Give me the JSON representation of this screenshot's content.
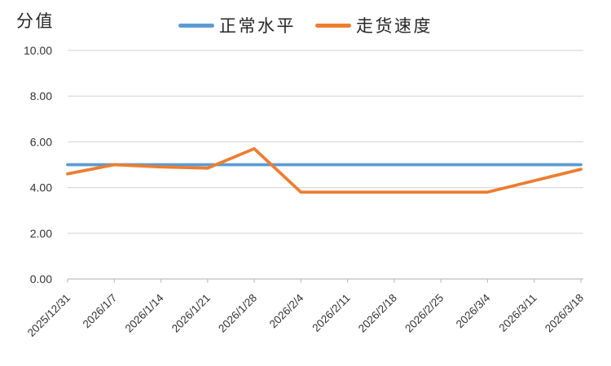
{
  "page": {
    "background": "#FFFFFF"
  },
  "chart_data": {
    "type": "line",
    "title": "",
    "ylabel": "分值",
    "xlabel": "",
    "x": [
      "2025/12/31",
      "2026/1/7",
      "2026/1/14",
      "2026/1/21",
      "2026/1/28",
      "2026/2/4",
      "2026/2/11",
      "2026/2/18",
      "2026/2/25",
      "2026/3/4",
      "2026/3/11",
      "2026/3/18"
    ],
    "series": [
      {
        "name": "正常水平",
        "color": "#5B9BD5",
        "values": [
          5.0,
          5.0,
          5.0,
          5.0,
          5.0,
          5.0,
          5.0,
          5.0,
          5.0,
          5.0,
          5.0,
          5.0
        ]
      },
      {
        "name": "走货速度",
        "color": "#ED7D31",
        "values": [
          4.6,
          5.0,
          4.9,
          4.85,
          5.7,
          3.8,
          3.8,
          3.8,
          3.8,
          3.8,
          4.3,
          4.8
        ]
      }
    ],
    "ylim": [
      0,
      10
    ],
    "ytick_step": 2,
    "ytick_labels": [
      "0.00",
      "2.00",
      "4.00",
      "6.00",
      "8.00",
      "10.00"
    ],
    "grid": true,
    "legend_position": "top",
    "colors": {
      "gridline": "#D9D9D9",
      "axis": "#BFBFBF",
      "tick_text": "#333333",
      "title_text": "#262626"
    }
  }
}
